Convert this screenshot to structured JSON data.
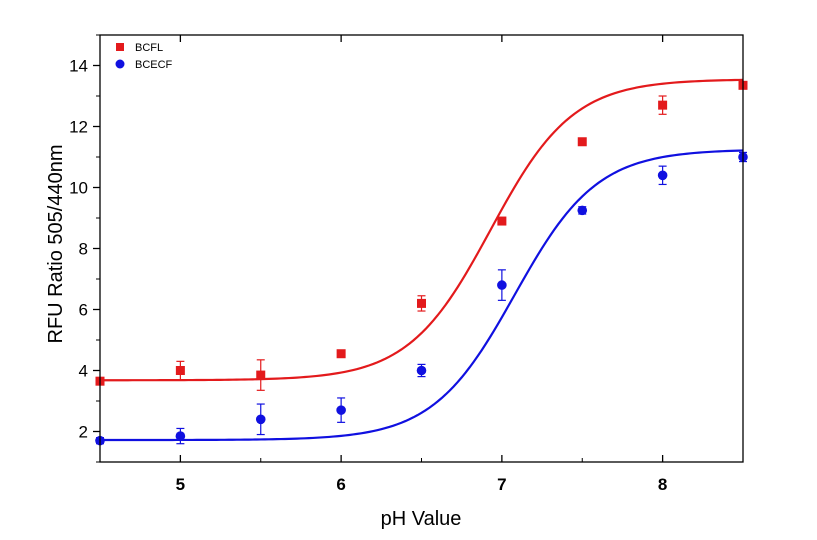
{
  "chart_data": {
    "type": "scatter",
    "title": "",
    "xlabel": "pH Value",
    "ylabel": "RFU Ratio 505/440nm",
    "xlim": [
      4.5,
      8.5
    ],
    "ylim": [
      1,
      15
    ],
    "xticks": [
      5,
      6,
      7,
      8
    ],
    "yticks": [
      2,
      4,
      6,
      8,
      10,
      12,
      14
    ],
    "legend_position": "top-left",
    "series": [
      {
        "name": "BCFL",
        "color": "#e31a1c",
        "marker": "square",
        "x": [
          4.5,
          5.0,
          5.5,
          6.0,
          6.5,
          7.0,
          7.5,
          8.0,
          8.5
        ],
        "y": [
          3.65,
          4.0,
          3.85,
          4.55,
          6.2,
          8.9,
          11.5,
          12.7,
          13.35
        ],
        "err": [
          0.1,
          0.3,
          0.5,
          0.08,
          0.25,
          0.08,
          0.08,
          0.3,
          0.08
        ],
        "fit": {
          "bottom": 3.68,
          "top": 13.55,
          "pKa": 6.93,
          "slope": 1.7
        }
      },
      {
        "name": "BCECF",
        "color": "#1010e0",
        "marker": "circle",
        "x": [
          4.5,
          5.0,
          5.5,
          6.0,
          6.5,
          7.0,
          7.5,
          8.0,
          8.5
        ],
        "y": [
          1.7,
          1.85,
          2.4,
          2.7,
          4.0,
          6.8,
          9.25,
          10.4,
          11.0
        ],
        "err": [
          0.1,
          0.25,
          0.5,
          0.4,
          0.2,
          0.5,
          0.12,
          0.3,
          0.15
        ],
        "fit": {
          "bottom": 1.72,
          "top": 11.25,
          "pKa": 7.08,
          "slope": 1.7
        }
      }
    ]
  }
}
